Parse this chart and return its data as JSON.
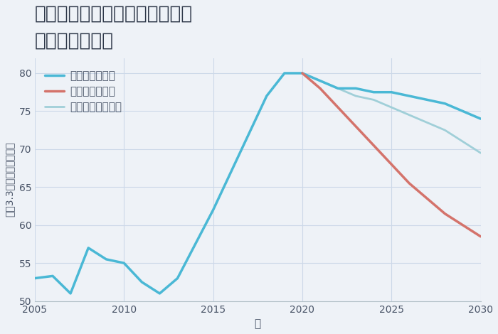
{
  "title": "愛知県名古屋市中村区森末町の\n土地の価格推移",
  "xlabel": "年",
  "ylabel": "坪（3.3㎡）単価（万円）",
  "xlim": [
    2005,
    2030
  ],
  "ylim": [
    50,
    82
  ],
  "yticks": [
    50,
    55,
    60,
    65,
    70,
    75,
    80
  ],
  "xticks": [
    2005,
    2010,
    2015,
    2020,
    2025,
    2030
  ],
  "background_color": "#eef2f7",
  "plot_bg_color": "#eef2f7",
  "good_scenario": {
    "label": "グッドシナリオ",
    "color": "#4ab8d5",
    "linewidth": 2.5,
    "x": [
      2005,
      2006,
      2007,
      2008,
      2009,
      2010,
      2011,
      2012,
      2013,
      2014,
      2015,
      2016,
      2017,
      2018,
      2019,
      2020,
      2021,
      2022,
      2023,
      2024,
      2025,
      2026,
      2027,
      2028,
      2029,
      2030
    ],
    "y": [
      53,
      53.3,
      51.0,
      57.0,
      55.5,
      55.0,
      52.5,
      51.0,
      53.0,
      57.5,
      62.0,
      67.0,
      72.0,
      77.0,
      80.0,
      80.0,
      79.0,
      78.0,
      78.0,
      77.5,
      77.5,
      77.0,
      76.5,
      76.0,
      75.0,
      74.0
    ]
  },
  "bad_scenario": {
    "label": "バッドシナリオ",
    "color": "#d4736b",
    "linewidth": 2.5,
    "x": [
      2020,
      2021,
      2022,
      2023,
      2024,
      2025,
      2026,
      2027,
      2028,
      2029,
      2030
    ],
    "y": [
      80.0,
      78.0,
      75.5,
      73.0,
      70.5,
      68.0,
      65.5,
      63.5,
      61.5,
      60.0,
      58.5
    ]
  },
  "normal_scenario": {
    "label": "ノーマルシナリオ",
    "color": "#a0cfd8",
    "linewidth": 2.0,
    "x": [
      2020,
      2021,
      2022,
      2023,
      2024,
      2025,
      2026,
      2027,
      2028,
      2029,
      2030
    ],
    "y": [
      80.0,
      79.0,
      78.0,
      77.0,
      76.5,
      75.5,
      74.5,
      73.5,
      72.5,
      71.0,
      69.5
    ]
  },
  "grid_color": "#ccd8e8",
  "title_fontsize": 19,
  "legend_fontsize": 11,
  "tick_fontsize": 10,
  "xlabel_fontsize": 11,
  "ylabel_fontsize": 10
}
